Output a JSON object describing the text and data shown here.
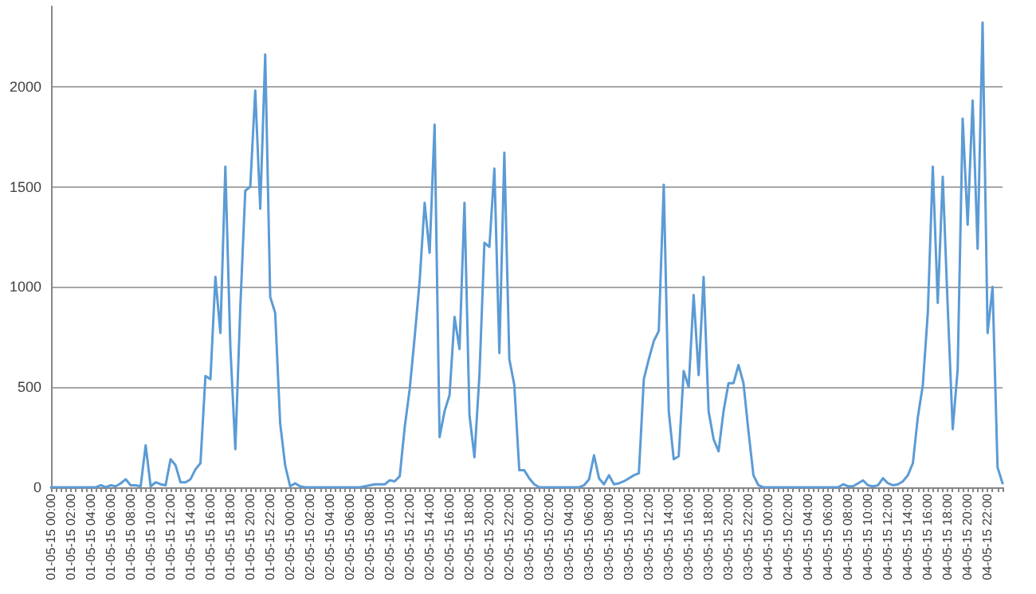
{
  "chart_data": {
    "type": "line",
    "categories": [
      "01-05-15 00:00",
      null,
      null,
      null,
      "01-05-15 02:00",
      null,
      null,
      null,
      "01-05-15 04:00",
      null,
      null,
      null,
      "01-05-15 06:00",
      null,
      null,
      null,
      "01-05-15 08:00",
      null,
      null,
      null,
      "01-05-15 10:00",
      null,
      null,
      null,
      "01-05-15 12:00",
      null,
      null,
      null,
      "01-05-15 14:00",
      null,
      null,
      null,
      "01-05-15 16:00",
      null,
      null,
      null,
      "01-05-15 18:00",
      null,
      null,
      null,
      "01-05-15 20:00",
      null,
      null,
      null,
      "01-05-15 22:00",
      null,
      null,
      null,
      "02-05-15 00:00",
      null,
      null,
      null,
      "02-05-15 02:00",
      null,
      null,
      null,
      "02-05-15 04:00",
      null,
      null,
      null,
      "02-05-15 06:00",
      null,
      null,
      null,
      "02-05-15 08:00",
      null,
      null,
      null,
      "02-05-15 10:00",
      null,
      null,
      null,
      "02-05-15 12:00",
      null,
      null,
      null,
      "02-05-15 14:00",
      null,
      null,
      null,
      "02-05-15 16:00",
      null,
      null,
      null,
      "02-05-15 18:00",
      null,
      null,
      null,
      "02-05-15 20:00",
      null,
      null,
      null,
      "02-05-15 22:00",
      null,
      null,
      null,
      "03-05-15 00:00",
      null,
      null,
      null,
      "03-05-15 02:00",
      null,
      null,
      null,
      "03-05-15 04:00",
      null,
      null,
      null,
      "03-05-15 06:00",
      null,
      null,
      null,
      "03-05-15 08:00",
      null,
      null,
      null,
      "03-05-15 10:00",
      null,
      null,
      null,
      "03-05-15 12:00",
      null,
      null,
      null,
      "03-05-15 14:00",
      null,
      null,
      null,
      "03-05-15 16:00",
      null,
      null,
      null,
      "03-05-15 18:00",
      null,
      null,
      null,
      "03-05-15 20:00",
      null,
      null,
      null,
      "03-05-15 22:00",
      null,
      null,
      null,
      "04-05-15 00:00",
      null,
      null,
      null,
      "04-05-15 02:00",
      null,
      null,
      null,
      "04-05-15 04:00",
      null,
      null,
      null,
      "04-05-15 06:00",
      null,
      null,
      null,
      "04-05-15 08:00",
      null,
      null,
      null,
      "04-05-15 10:00",
      null,
      null,
      null,
      "04-05-15 12:00",
      null,
      null,
      null,
      "04-05-15 14:00",
      null,
      null,
      null,
      "04-05-15 16:00",
      null,
      null,
      null,
      "04-05-15 18:00",
      null,
      null,
      null,
      "04-05-15 20:00",
      null,
      null,
      null,
      "04-05-15 22:00",
      null,
      null,
      null
    ],
    "series": [
      {
        "color": "#5b9bd5",
        "values": [
          0,
          0,
          0,
          0,
          0,
          0,
          0,
          0,
          0,
          0,
          10,
          0,
          10,
          5,
          20,
          40,
          10,
          10,
          5,
          210,
          5,
          25,
          15,
          10,
          140,
          110,
          25,
          25,
          40,
          90,
          120,
          555,
          540,
          1050,
          770,
          1600,
          700,
          190,
          900,
          1480,
          1500,
          1980,
          1390,
          2160,
          950,
          870,
          320,
          110,
          5,
          20,
          5,
          0,
          0,
          0,
          0,
          0,
          0,
          0,
          0,
          0,
          0,
          0,
          0,
          5,
          10,
          15,
          15,
          15,
          35,
          30,
          55,
          300,
          490,
          750,
          1030,
          1420,
          1170,
          1810,
          250,
          380,
          460,
          850,
          690,
          1420,
          360,
          150,
          560,
          1220,
          1200,
          1590,
          670,
          1670,
          640,
          510,
          85,
          85,
          45,
          15,
          0,
          0,
          0,
          0,
          0,
          0,
          0,
          0,
          0,
          10,
          40,
          160,
          45,
          15,
          60,
          15,
          20,
          30,
          45,
          60,
          70,
          540,
          640,
          730,
          780,
          1510,
          380,
          140,
          155,
          580,
          500,
          960,
          560,
          1050,
          380,
          240,
          180,
          380,
          520,
          520,
          610,
          520,
          280,
          60,
          10,
          0,
          0,
          0,
          0,
          0,
          0,
          0,
          0,
          0,
          0,
          0,
          0,
          0,
          0,
          0,
          0,
          15,
          5,
          5,
          20,
          35,
          10,
          5,
          10,
          45,
          20,
          10,
          15,
          30,
          60,
          120,
          350,
          510,
          870,
          1600,
          920,
          1550,
          900,
          290,
          590,
          1840,
          1310,
          1930,
          1190,
          2320,
          770,
          1000,
          100,
          20
        ]
      }
    ],
    "ylim": [
      0,
      2400
    ],
    "yticks": [
      0,
      500,
      1000,
      1500,
      2000
    ],
    "grid": "y",
    "marker": "none",
    "line_style": "solid"
  }
}
